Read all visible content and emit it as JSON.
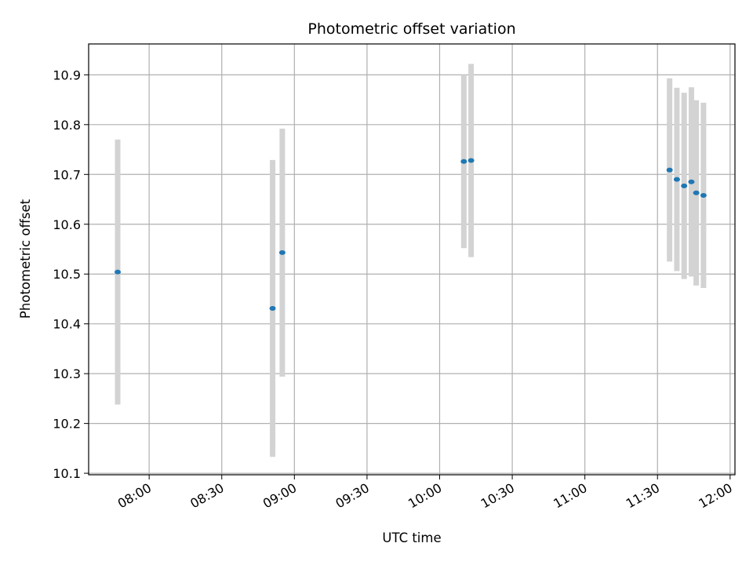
{
  "chart_data": {
    "type": "scatter",
    "title": "Photometric offset variation",
    "xlabel": "UTC time",
    "ylabel": "Photometric offset",
    "xlim": [
      "07:35:00",
      "12:02:00"
    ],
    "ylim": [
      10.097,
      10.962
    ],
    "grid": true,
    "x_ticks": [
      "08:00",
      "08:30",
      "09:00",
      "09:30",
      "10:00",
      "10:30",
      "11:00",
      "11:30",
      "12:00"
    ],
    "y_ticks": [
      "10.1",
      "10.2",
      "10.3",
      "10.4",
      "10.5",
      "10.6",
      "10.7",
      "10.8",
      "10.9"
    ],
    "marker_color": "#1f77b4",
    "errorbar_color": "#d3d3d3",
    "series": [
      {
        "points": [
          {
            "x": "07:47:00",
            "y": 10.504,
            "err": 0.266
          },
          {
            "x": "08:51:00",
            "y": 10.431,
            "err": 0.298
          },
          {
            "x": "08:55:00",
            "y": 10.543,
            "err": 0.249
          },
          {
            "x": "10:10:00",
            "y": 10.726,
            "err": 0.174
          },
          {
            "x": "10:13:00",
            "y": 10.728,
            "err": 0.194
          },
          {
            "x": "11:35:00",
            "y": 10.709,
            "err": 0.184
          },
          {
            "x": "11:38:00",
            "y": 10.69,
            "err": 0.184
          },
          {
            "x": "11:41:00",
            "y": 10.677,
            "err": 0.187
          },
          {
            "x": "11:44:00",
            "y": 10.685,
            "err": 0.19
          },
          {
            "x": "11:46:00",
            "y": 10.663,
            "err": 0.186
          },
          {
            "x": "11:49:00",
            "y": 10.658,
            "err": 0.186
          }
        ]
      }
    ]
  }
}
